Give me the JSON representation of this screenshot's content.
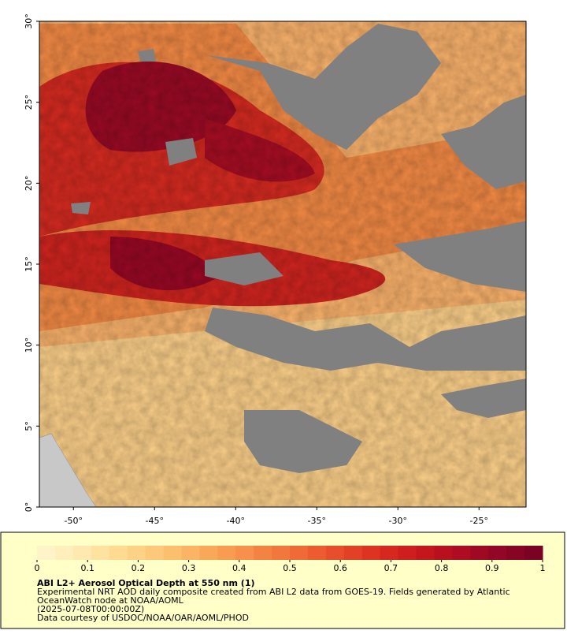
{
  "map": {
    "lat_range": [
      0,
      30
    ],
    "lon_range": [
      -52.1,
      -22.1
    ],
    "lat_ticks": [
      {
        "value": 0,
        "label": "0°"
      },
      {
        "value": 5,
        "label": "5°"
      },
      {
        "value": 10,
        "label": "10°"
      },
      {
        "value": 15,
        "label": "15°"
      },
      {
        "value": 20,
        "label": "20°"
      },
      {
        "value": 25,
        "label": "25°"
      },
      {
        "value": 30,
        "label": "30°"
      }
    ],
    "lon_ticks": [
      {
        "value": -50,
        "label": "-50°"
      },
      {
        "value": -45,
        "label": "-45°"
      },
      {
        "value": -40,
        "label": "-40°"
      },
      {
        "value": -35,
        "label": "-35°"
      },
      {
        "value": -30,
        "label": "-30°"
      },
      {
        "value": -25,
        "label": "-25°"
      }
    ]
  },
  "colorbar": {
    "range": [
      0,
      1
    ],
    "ticks": [
      0,
      0.1,
      0.2,
      0.3,
      0.4,
      0.5,
      0.6,
      0.7,
      0.8,
      0.9,
      1
    ],
    "colors": [
      "#fff4c8",
      "#ffefbc",
      "#ffe9ae",
      "#ffe2a0",
      "#ffdb92",
      "#fdd286",
      "#fcc97a",
      "#fbbf6e",
      "#fab464",
      "#f9a85a",
      "#f89c52",
      "#f6904a",
      "#f48342",
      "#f2773c",
      "#ef6a36",
      "#ec5c30",
      "#e84e2b",
      "#e34126",
      "#dd3422",
      "#d6281f",
      "#ce1e1d",
      "#c4161d",
      "#b9101f",
      "#ad0c22",
      "#a00924",
      "#930625",
      "#870425",
      "#7b0224"
    ]
  },
  "caption": {
    "title": "ABI L2+ Aerosol Optical Depth at 550 nm (1)",
    "lines": [
      "Experimental NRT AOD daily composite created from ABI L2 data from GOES-19. Fields generated by Atlantic",
      "OceanWatch node at NOAA/AOML",
      "(2025-07-08T00:00:00Z)",
      "Data courtesy of USDOC/NOAA/OAR/AOML/PHOD"
    ]
  }
}
